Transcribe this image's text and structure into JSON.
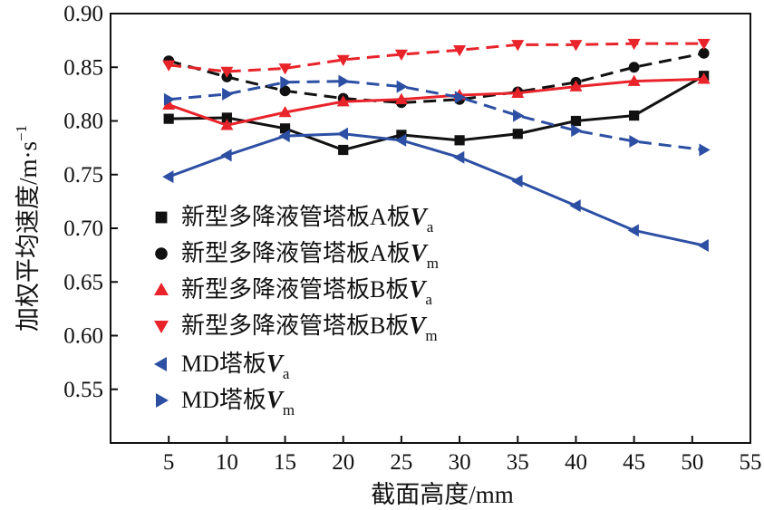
{
  "chart_data": {
    "type": "line",
    "xlabel": "截面高度/mm",
    "ylabel": "加权平均速度/m·s",
    "ylabel_exponent": "−1",
    "xlim": [
      0,
      55
    ],
    "ylim": [
      0.5,
      0.9
    ],
    "x_ticks": [
      "5",
      "10",
      "15",
      "20",
      "25",
      "30",
      "35",
      "40",
      "45",
      "50",
      "55"
    ],
    "y_ticks": [
      "0.55",
      "0.60",
      "0.65",
      "0.70",
      "0.75",
      "0.80",
      "0.85",
      "0.90"
    ],
    "grid": false,
    "legend_position": "left-center",
    "series": [
      {
        "name": "新型多降液管塔板A板",
        "symbol": "V",
        "subscript": "a",
        "color": "#111111",
        "marker": "square",
        "dash": false,
        "x": [
          5,
          10,
          15,
          20,
          25,
          30,
          35,
          40,
          45,
          51
        ],
        "y": [
          0.802,
          0.803,
          0.793,
          0.773,
          0.787,
          0.782,
          0.788,
          0.8,
          0.805,
          0.842
        ]
      },
      {
        "name": "新型多降液管塔板A板",
        "symbol": "V",
        "subscript": "m",
        "color": "#111111",
        "marker": "circle",
        "dash": true,
        "x": [
          5,
          10,
          15,
          20,
          25,
          30,
          35,
          40,
          45,
          51
        ],
        "y": [
          0.856,
          0.841,
          0.828,
          0.821,
          0.817,
          0.82,
          0.827,
          0.836,
          0.85,
          0.863
        ]
      },
      {
        "name": "新型多降液管塔板B板",
        "symbol": "V",
        "subscript": "a",
        "color": "#e8232a",
        "marker": "triangle-up",
        "dash": false,
        "x": [
          5,
          10,
          15,
          20,
          25,
          30,
          35,
          40,
          45,
          51
        ],
        "y": [
          0.815,
          0.796,
          0.808,
          0.818,
          0.82,
          0.824,
          0.826,
          0.832,
          0.837,
          0.839
        ]
      },
      {
        "name": "新型多降液管塔板B板",
        "symbol": "V",
        "subscript": "m",
        "color": "#e8232a",
        "marker": "triangle-down",
        "dash": true,
        "x": [
          5,
          10,
          15,
          20,
          25,
          30,
          35,
          40,
          45,
          51
        ],
        "y": [
          0.852,
          0.846,
          0.849,
          0.857,
          0.862,
          0.866,
          0.871,
          0.871,
          0.872,
          0.872
        ]
      },
      {
        "name": "MD塔板",
        "symbol": "V",
        "subscript": "a",
        "color": "#2c4fa3",
        "marker": "triangle-left",
        "dash": false,
        "x": [
          5,
          10,
          15,
          20,
          25,
          30,
          35,
          40,
          45,
          51
        ],
        "y": [
          0.748,
          0.768,
          0.786,
          0.788,
          0.782,
          0.766,
          0.744,
          0.721,
          0.698,
          0.684
        ]
      },
      {
        "name": "MD塔板",
        "symbol": "V",
        "subscript": "m",
        "color": "#2c4fa3",
        "marker": "triangle-right",
        "dash": true,
        "x": [
          5,
          10,
          15,
          20,
          25,
          30,
          35,
          40,
          45,
          51
        ],
        "y": [
          0.82,
          0.825,
          0.836,
          0.837,
          0.832,
          0.822,
          0.805,
          0.791,
          0.781,
          0.773
        ]
      }
    ]
  }
}
